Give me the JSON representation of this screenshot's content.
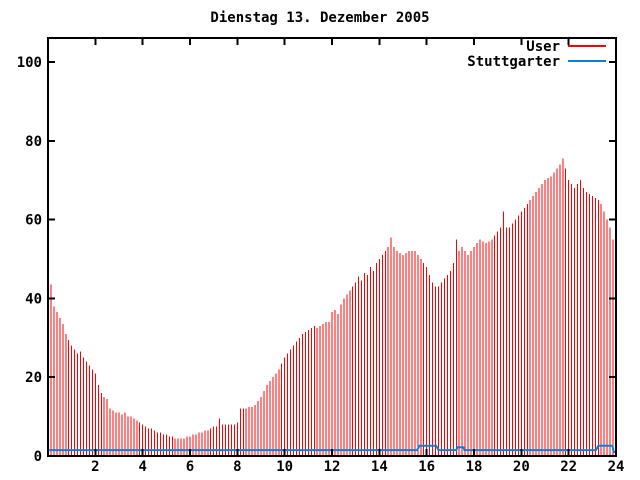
{
  "title": "Dienstag 13. Dezember 2005",
  "colors": {
    "user": "#ff0000",
    "stuttgarter": "#0a7fd8",
    "frame": "#000000",
    "background": "#ffffff",
    "text": "#000000"
  },
  "legend": {
    "position": "top-right",
    "entries": [
      {
        "label": "User",
        "color": "#ff0000"
      },
      {
        "label": "Stuttgarter",
        "color": "#0a7fd8"
      }
    ]
  },
  "chart_data": {
    "type": "bar",
    "title": "Dienstag 13. Dezember 2005",
    "xlabel": "",
    "ylabel": "",
    "xlim": [
      0,
      24
    ],
    "ylim": [
      0,
      106
    ],
    "x_ticks": [
      2,
      4,
      6,
      8,
      10,
      12,
      14,
      16,
      18,
      20,
      22,
      24
    ],
    "y_ticks": [
      0,
      20,
      40,
      60,
      80,
      100
    ],
    "grid": false,
    "legend_position": "top-right",
    "series": [
      {
        "name": "User",
        "style": "impulses",
        "color": "#ff0000",
        "x_start_hours": 0.125,
        "x_step_hours": 0.125,
        "values": [
          43.5,
          38,
          36.5,
          35,
          33.5,
          31,
          29.5,
          28,
          27,
          26,
          26.5,
          25,
          24,
          23,
          22,
          21,
          18,
          16,
          15,
          14.5,
          12,
          11.5,
          11,
          11,
          10.5,
          11,
          10,
          10,
          9.5,
          9,
          8.5,
          8,
          7.5,
          7,
          7,
          6.5,
          6,
          6,
          5.5,
          5.5,
          5,
          5,
          4.5,
          4.5,
          4.5,
          4.5,
          5,
          5,
          5.5,
          5.5,
          6,
          6,
          6.5,
          6.5,
          7,
          7.5,
          7.5,
          9.5,
          8,
          8,
          8,
          8,
          8,
          8.5,
          12,
          12,
          12,
          12.5,
          12.5,
          13,
          14,
          15,
          16.5,
          18,
          19,
          20,
          21,
          22,
          23.5,
          25,
          26,
          27,
          28,
          29,
          30,
          31,
          31.5,
          32,
          32.5,
          33,
          32.5,
          33,
          33.5,
          34,
          34,
          36.5,
          37,
          36,
          38.5,
          40,
          41,
          42,
          43,
          44,
          45.5,
          44.5,
          46.5,
          46,
          48,
          47,
          49,
          50,
          51,
          52,
          53,
          55.5,
          53,
          52,
          51.5,
          51,
          51.5,
          52,
          52,
          52,
          51,
          50,
          49,
          48,
          46,
          44,
          43,
          43,
          44,
          45,
          46,
          47,
          49,
          55,
          52,
          53,
          52,
          51,
          52,
          53,
          54,
          55,
          54.5,
          54,
          54.5,
          55,
          56,
          57,
          58,
          62,
          58,
          58,
          59,
          60,
          61,
          62,
          63,
          64,
          65,
          66,
          67,
          68,
          69,
          70,
          70.5,
          71,
          72,
          73,
          74,
          75.5,
          73,
          70,
          69,
          68,
          69,
          70,
          68,
          67,
          66.5,
          66,
          65.5,
          65,
          64,
          62,
          60,
          58,
          55,
          52
        ]
      },
      {
        "name": "Stuttgarter",
        "style": "line",
        "color": "#0a7fd8",
        "points": [
          [
            0.05,
            1.5
          ],
          [
            15.6,
            1.5
          ],
          [
            15.7,
            2.6
          ],
          [
            16.4,
            2.6
          ],
          [
            16.5,
            1.5
          ],
          [
            17.25,
            1.5
          ],
          [
            17.3,
            2.2
          ],
          [
            17.55,
            2.2
          ],
          [
            17.6,
            1.5
          ],
          [
            23.15,
            1.5
          ],
          [
            23.25,
            2.6
          ],
          [
            23.85,
            2.6
          ],
          [
            23.9,
            1.0
          ],
          [
            24,
            1.0
          ]
        ]
      }
    ]
  }
}
